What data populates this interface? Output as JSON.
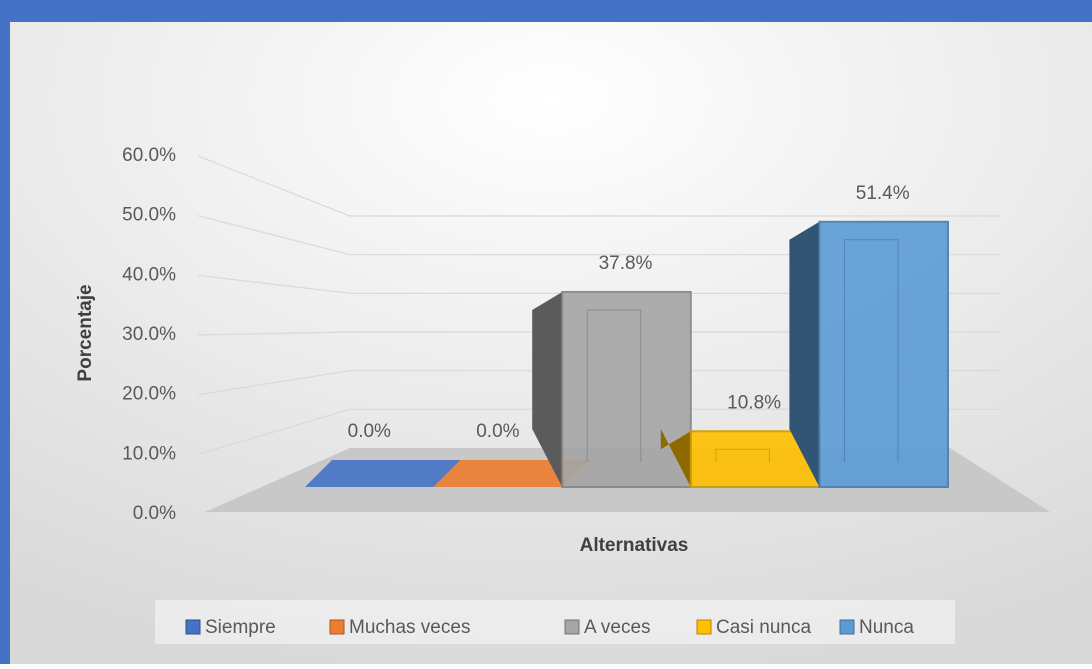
{
  "chart_data": {
    "type": "bar",
    "xlabel": "Alternativas",
    "ylabel": "Porcentaje",
    "ylim": [
      0,
      60
    ],
    "yticks": [
      {
        "value": 0,
        "label": "0.0%"
      },
      {
        "value": 10,
        "label": "10.0%"
      },
      {
        "value": 20,
        "label": "20.0%"
      },
      {
        "value": 30,
        "label": "30.0%"
      },
      {
        "value": 40,
        "label": "40.0%"
      },
      {
        "value": 50,
        "label": "50.0%"
      },
      {
        "value": 60,
        "label": "60.0%"
      }
    ],
    "grid": true,
    "legend": "bottom",
    "series": [
      {
        "name": "Siempre",
        "color": "#4472c4",
        "values": [
          0
        ],
        "value_labels": [
          "0.0%"
        ]
      },
      {
        "name": "Muchas veces",
        "color": "#ed7d31",
        "values": [
          0
        ],
        "value_labels": [
          "0.0%"
        ]
      },
      {
        "name": "A veces",
        "color": "#a5a5a5",
        "values": [
          37.8
        ],
        "value_labels": [
          "37.8%"
        ]
      },
      {
        "name": "Casi nunca",
        "color": "#ffc000",
        "values": [
          10.8
        ],
        "value_labels": [
          "10.8%"
        ]
      },
      {
        "name": "Nunca",
        "color": "#5b9bd5",
        "values": [
          51.4
        ],
        "value_labels": [
          "51.4%"
        ]
      }
    ]
  }
}
